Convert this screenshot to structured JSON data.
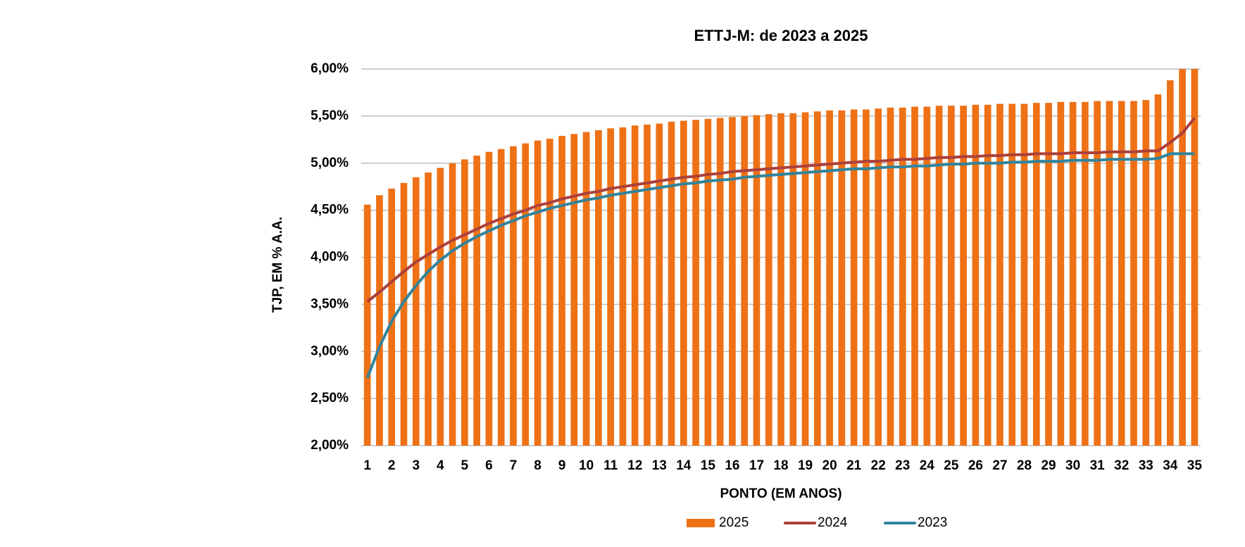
{
  "chart_data": {
    "type": "bar",
    "title": "ETTJ-M: de 2023 a 2025",
    "x_label": "PONTO (EM ANOS)",
    "y_label": "TJP, EM % A.A.",
    "categories": [
      "1",
      null,
      "2",
      null,
      "3",
      null,
      "4",
      null,
      "5",
      null,
      "6",
      null,
      "7",
      null,
      "8",
      null,
      "9",
      null,
      "10",
      null,
      "11",
      null,
      "12",
      null,
      "13",
      null,
      "14",
      null,
      "15",
      null,
      "16",
      null,
      "17",
      null,
      "18",
      null,
      "19",
      null,
      "20",
      null,
      "21",
      null,
      "22",
      null,
      "23",
      null,
      "24",
      null,
      "25",
      null,
      "26",
      null,
      "27",
      null,
      "28",
      null,
      "29",
      null,
      "30",
      null,
      "31",
      null,
      "32",
      null,
      "33",
      null,
      "34",
      null,
      "35"
    ],
    "series": [
      {
        "name": "2025",
        "type": "bar",
        "color": "#ee7116",
        "values": [
          4.56,
          4.66,
          4.73,
          4.79,
          4.85,
          4.9,
          4.95,
          5.0,
          5.04,
          5.08,
          5.12,
          5.15,
          5.18,
          5.21,
          5.24,
          5.26,
          5.29,
          5.31,
          5.33,
          5.35,
          5.37,
          5.38,
          5.4,
          5.41,
          5.42,
          5.44,
          5.45,
          5.46,
          5.47,
          5.48,
          5.49,
          5.5,
          5.51,
          5.52,
          5.53,
          5.53,
          5.54,
          5.55,
          5.56,
          5.56,
          5.57,
          5.57,
          5.58,
          5.59,
          5.59,
          5.6,
          5.6,
          5.61,
          5.61,
          5.61,
          5.62,
          5.62,
          5.63,
          5.63,
          5.63,
          5.64,
          5.64,
          5.65,
          5.65,
          5.65,
          5.66,
          5.66,
          5.66,
          5.66,
          5.67,
          5.73,
          5.88,
          6.0,
          6.0
        ]
      },
      {
        "name": "2024",
        "type": "line",
        "color": "#ab403c",
        "values": [
          3.53,
          3.63,
          3.74,
          3.85,
          3.95,
          4.03,
          4.11,
          4.18,
          4.24,
          4.3,
          4.36,
          4.41,
          4.46,
          4.5,
          4.55,
          4.58,
          4.62,
          4.65,
          4.68,
          4.7,
          4.73,
          4.75,
          4.77,
          4.79,
          4.81,
          4.83,
          4.85,
          4.86,
          4.88,
          4.89,
          4.91,
          4.92,
          4.93,
          4.94,
          4.95,
          4.96,
          4.97,
          4.98,
          4.99,
          5.0,
          5.01,
          5.02,
          5.02,
          5.03,
          5.04,
          5.04,
          5.05,
          5.06,
          5.06,
          5.07,
          5.07,
          5.08,
          5.08,
          5.09,
          5.09,
          5.1,
          5.1,
          5.1,
          5.11,
          5.11,
          5.11,
          5.12,
          5.12,
          5.12,
          5.13,
          5.13,
          5.22,
          5.32,
          5.48
        ]
      },
      {
        "name": "2023",
        "type": "line",
        "color": "#31849b",
        "values": [
          2.72,
          3.05,
          3.32,
          3.53,
          3.7,
          3.85,
          3.97,
          4.07,
          4.15,
          4.22,
          4.28,
          4.34,
          4.39,
          4.44,
          4.48,
          4.52,
          4.55,
          4.58,
          4.61,
          4.63,
          4.66,
          4.68,
          4.7,
          4.72,
          4.74,
          4.76,
          4.78,
          4.79,
          4.81,
          4.82,
          4.83,
          4.85,
          4.86,
          4.87,
          4.88,
          4.89,
          4.9,
          4.91,
          4.92,
          4.93,
          4.94,
          4.94,
          4.95,
          4.96,
          4.96,
          4.97,
          4.97,
          4.98,
          4.99,
          4.99,
          5.0,
          5.0,
          5.0,
          5.01,
          5.01,
          5.02,
          5.02,
          5.02,
          5.03,
          5.03,
          5.03,
          5.04,
          5.04,
          5.04,
          5.04,
          5.05,
          5.1,
          5.1,
          5.1
        ]
      }
    ],
    "ylim": [
      2,
      6
    ],
    "yticks": [
      {
        "value": 2,
        "label": "2,00%"
      },
      {
        "value": 2.5,
        "label": "2,50%"
      },
      {
        "value": 3,
        "label": "3,00%"
      },
      {
        "value": 3.5,
        "label": "3,50%"
      },
      {
        "value": 4,
        "label": "4,00%"
      },
      {
        "value": 4.5,
        "label": "4,50%"
      },
      {
        "value": 5,
        "label": "5,00%"
      },
      {
        "value": 5.5,
        "label": "5,50%"
      },
      {
        "value": 6,
        "label": "6,00%"
      }
    ],
    "grid": true,
    "legend": "bottom"
  }
}
